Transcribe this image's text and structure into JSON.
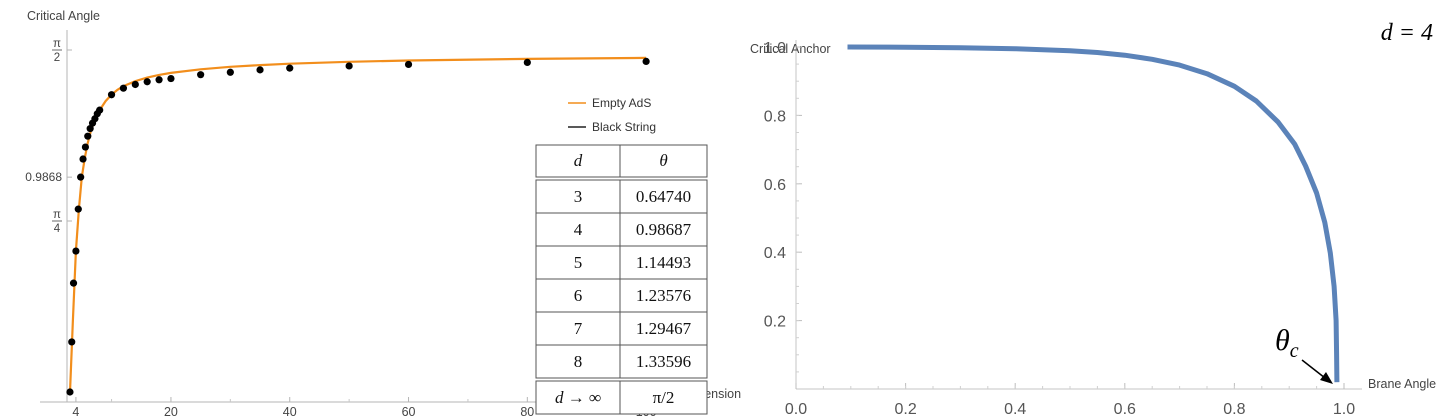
{
  "chart_data": [
    {
      "type": "line",
      "ylabel": "Critical Angle",
      "xlabel": "Dimension",
      "xlim": [
        2.5,
        102
      ],
      "ylim": [
        0,
        1.5708
      ],
      "x_ticks": [
        {
          "value": 4,
          "label": "4"
        },
        {
          "value": 20,
          "label": "20"
        },
        {
          "value": 40,
          "label": "40"
        },
        {
          "value": 60,
          "label": "60"
        },
        {
          "value": 80,
          "label": "80"
        },
        {
          "value": 100,
          "label": "100"
        }
      ],
      "y_ticks": [
        {
          "value": 0.7854,
          "num": "π",
          "den": "4"
        },
        {
          "value": 1.5708,
          "num": "π",
          "den": "2"
        }
      ],
      "y_marked": {
        "value": 0.9868,
        "label": "0.9868"
      },
      "legend": {
        "position": "right",
        "entries": [
          {
            "name": "Empty AdS",
            "color": "#f28e1c"
          },
          {
            "name": "Black String",
            "color": "#222222"
          }
        ]
      },
      "series": [
        {
          "name": "Empty AdS",
          "kind": "curve",
          "color": "#f28e1c",
          "x": [
            3,
            3.5,
            4,
            4.5,
            5,
            5.5,
            6,
            6.5,
            7,
            7.5,
            8,
            9,
            10,
            11,
            12,
            14,
            16,
            18,
            20,
            25,
            30,
            35,
            40,
            50,
            60,
            80,
            100
          ],
          "y": [
            0,
            0.33,
            0.6474,
            0.84,
            0.9869,
            1.075,
            1.1449,
            1.198,
            1.2358,
            1.268,
            1.2947,
            1.336,
            1.3654,
            1.388,
            1.4045,
            1.428,
            1.444,
            1.4565,
            1.4655,
            1.482,
            1.4935,
            1.5015,
            1.5078,
            1.5165,
            1.5225,
            1.5298,
            1.5343
          ]
        },
        {
          "name": "Black String",
          "kind": "points",
          "color": "#000000",
          "x": [
            3,
            3.3,
            3.6,
            4,
            4.4,
            4.8,
            5.2,
            5.6,
            6,
            6.4,
            6.8,
            7.2,
            7.6,
            8,
            10,
            12,
            14,
            16,
            18,
            20,
            25,
            30,
            35,
            40,
            50,
            60,
            80,
            100
          ],
          "y": [
            0,
            0.23,
            0.5,
            0.6474,
            0.84,
            0.9869,
            1.07,
            1.125,
            1.175,
            1.21,
            1.235,
            1.255,
            1.278,
            1.2947,
            1.3654,
            1.3954,
            1.4125,
            1.425,
            1.434,
            1.4395,
            1.4575,
            1.4685,
            1.4795,
            1.4875,
            1.4975,
            1.5045,
            1.5138,
            1.5184
          ]
        }
      ],
      "table": {
        "header": [
          "d",
          "θ"
        ],
        "rows": [
          [
            "3",
            "0.64740"
          ],
          [
            "4",
            "0.98687"
          ],
          [
            "5",
            "1.14493"
          ],
          [
            "6",
            "1.23576"
          ],
          [
            "7",
            "1.29467"
          ],
          [
            "8",
            "1.33596"
          ],
          [
            "d → ∞",
            "π/2"
          ]
        ]
      }
    },
    {
      "type": "line",
      "ylabel": "Critical Anchor",
      "xlabel": "Brane Angle",
      "xlim": [
        0,
        1
      ],
      "ylim": [
        0,
        1
      ],
      "annotation_top": "d = 4",
      "marker_label": "θ_c",
      "marker_label_parts": {
        "base": "θ",
        "sub": "c"
      },
      "x_ticks": [
        {
          "value": 0.0,
          "label": "0.0"
        },
        {
          "value": 0.2,
          "label": "0.2"
        },
        {
          "value": 0.4,
          "label": "0.4"
        },
        {
          "value": 0.6,
          "label": "0.6"
        },
        {
          "value": 0.8,
          "label": "0.8"
        },
        {
          "value": 1.0,
          "label": "1.0"
        }
      ],
      "y_ticks": [
        {
          "value": 0.2,
          "label": "0.2"
        },
        {
          "value": 0.4,
          "label": "0.4"
        },
        {
          "value": 0.6,
          "label": "0.6"
        },
        {
          "value": 0.8,
          "label": "0.8"
        },
        {
          "value": 1.0,
          "label": "1.0"
        }
      ],
      "series": [
        {
          "color": "#5b83b9",
          "x": [
            0.094,
            0.2,
            0.3,
            0.4,
            0.5,
            0.55,
            0.6,
            0.65,
            0.7,
            0.75,
            0.8,
            0.84,
            0.88,
            0.91,
            0.93,
            0.95,
            0.965,
            0.975,
            0.982,
            0.9855,
            0.9865,
            0.987
          ],
          "y": [
            1.0,
            0.9995,
            0.998,
            0.995,
            0.989,
            0.984,
            0.976,
            0.964,
            0.947,
            0.922,
            0.885,
            0.842,
            0.78,
            0.716,
            0.652,
            0.573,
            0.487,
            0.398,
            0.3,
            0.2,
            0.1,
            0.02
          ]
        }
      ]
    }
  ]
}
